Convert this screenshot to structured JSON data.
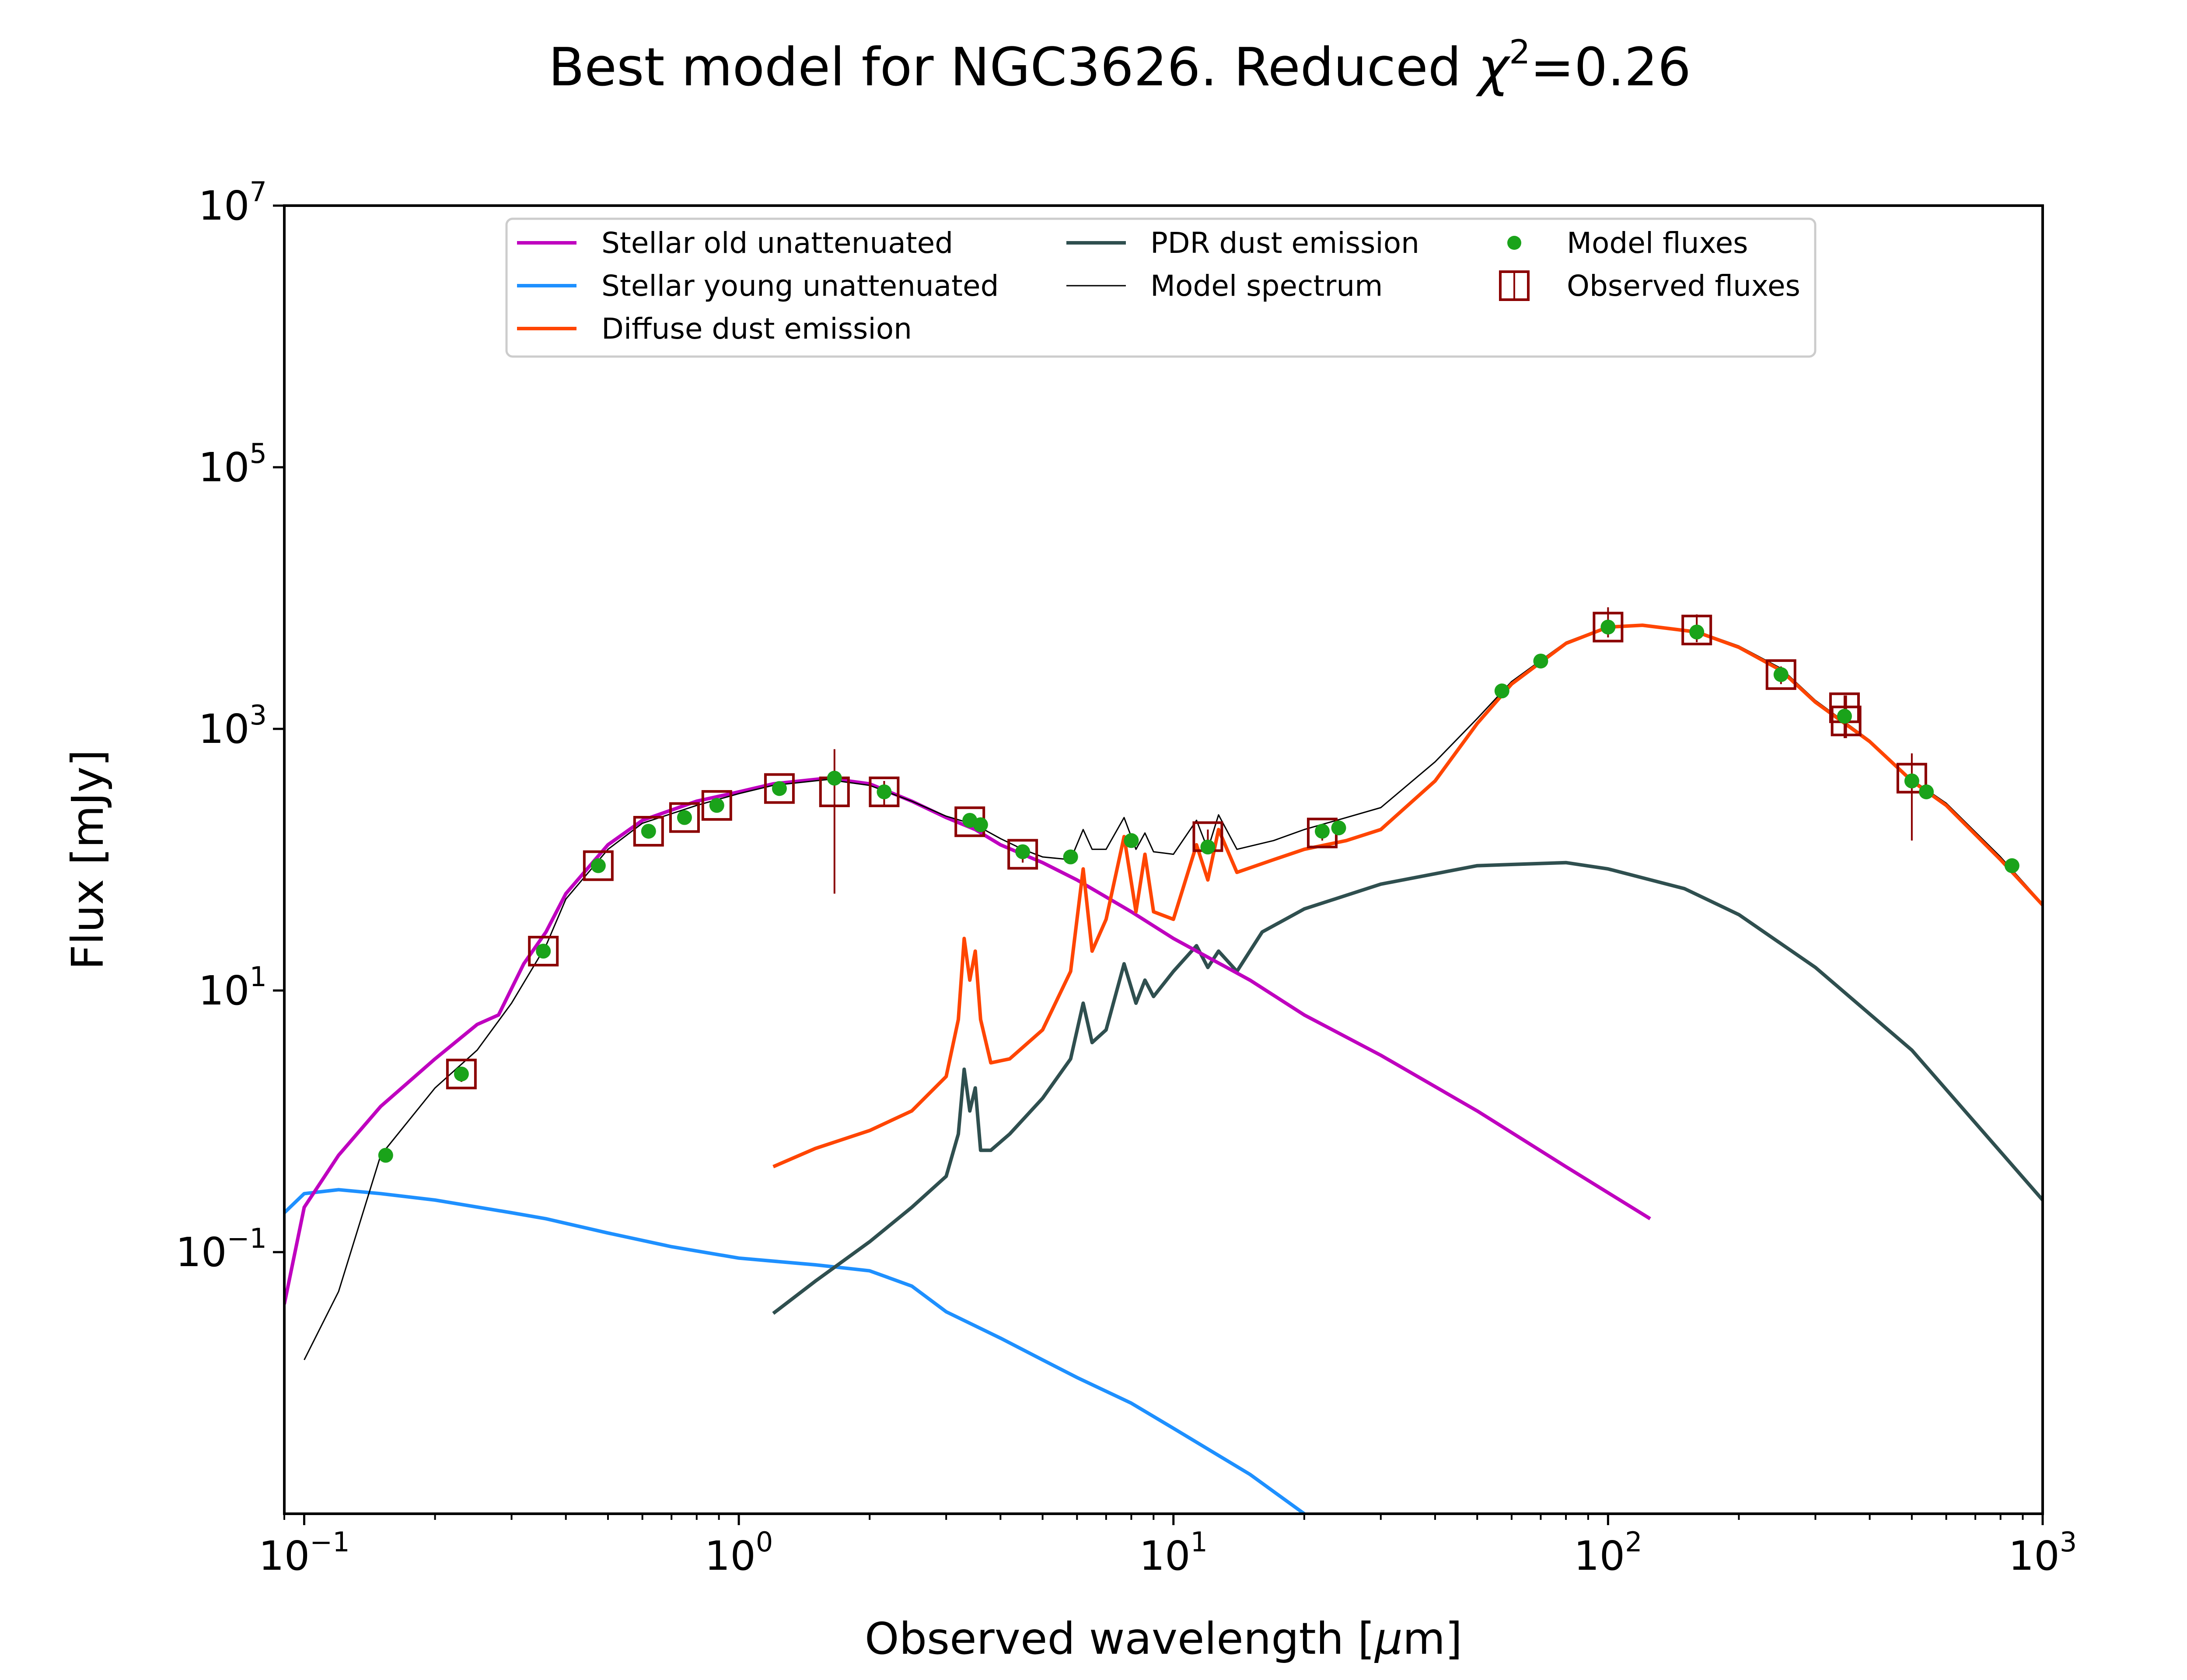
{
  "chart_data": {
    "type": "line",
    "title_prefix": "Best model for NGC3626. Reduced ",
    "title_symbol": "χ",
    "title_sup": "2",
    "title_suffix": "=0.26",
    "xlabel_prefix": "Observed wavelength [",
    "xlabel_mu": "μ",
    "xlabel_suffix": "m]",
    "ylabel": "Flux [mJy]",
    "x_scale": "log",
    "y_scale": "log",
    "xlim": [
      0.09,
      1000
    ],
    "ylim": [
      0.001,
      10000000
    ],
    "x_ticks": [
      {
        "value": 0.1,
        "base": "10",
        "exp": "−1"
      },
      {
        "value": 1,
        "base": "10",
        "exp": "0"
      },
      {
        "value": 10,
        "base": "10",
        "exp": "1"
      },
      {
        "value": 100,
        "base": "10",
        "exp": "2"
      },
      {
        "value": 1000,
        "base": "10",
        "exp": "3"
      }
    ],
    "y_ticks": [
      {
        "value": 0.1,
        "base": "10",
        "exp": "−1"
      },
      {
        "value": 10,
        "base": "10",
        "exp": "1"
      },
      {
        "value": 1000,
        "base": "10",
        "exp": "3"
      },
      {
        "value": 100000,
        "base": "10",
        "exp": "5"
      },
      {
        "value": 10000000,
        "base": "10",
        "exp": "7"
      }
    ],
    "legend_position": "upper-center",
    "series": [
      {
        "name": "Stellar old unattenuated",
        "color": "#bf00bf",
        "x": [
          0.09,
          0.1,
          0.12,
          0.15,
          0.2,
          0.25,
          0.28,
          0.32,
          0.36,
          0.4,
          0.5,
          0.6,
          0.8,
          1.0,
          1.2,
          1.6,
          2.0,
          2.5,
          3.0,
          3.5,
          4.0,
          4.5,
          5.0,
          6.0,
          8.0,
          10,
          15,
          20,
          30,
          50,
          80,
          125
        ],
        "y": [
          0.04,
          0.22,
          0.55,
          1.3,
          3.0,
          5.5,
          6.5,
          16,
          28,
          55,
          130,
          200,
          280,
          330,
          380,
          420,
          380,
          280,
          210,
          170,
          130,
          110,
          95,
          70,
          40,
          25,
          12,
          6.5,
          3.2,
          1.2,
          0.45,
          0.18
        ]
      },
      {
        "name": "Stellar young unattenuated",
        "color": "#1e90ff",
        "x": [
          0.09,
          0.1,
          0.12,
          0.15,
          0.2,
          0.3,
          0.36,
          0.5,
          0.7,
          1.0,
          1.5,
          2.0,
          2.5,
          3.0,
          4.0,
          5.0,
          6.0,
          8.0,
          10,
          15,
          20
        ],
        "y": [
          0.2,
          0.28,
          0.3,
          0.28,
          0.25,
          0.2,
          0.18,
          0.14,
          0.11,
          0.09,
          0.08,
          0.072,
          0.055,
          0.035,
          0.022,
          0.015,
          0.011,
          0.007,
          0.0045,
          0.002,
          0.001
        ]
      },
      {
        "name": "Diffuse dust emission",
        "color": "#ff4500",
        "x": [
          1.2,
          1.5,
          2.0,
          2.5,
          3.0,
          3.2,
          3.3,
          3.4,
          3.5,
          3.6,
          3.8,
          4.2,
          5.0,
          5.8,
          6.2,
          6.5,
          7.0,
          7.7,
          8.2,
          8.6,
          9.0,
          10,
          11.3,
          12.0,
          12.7,
          14,
          17,
          20,
          25,
          30,
          40,
          50,
          60,
          80,
          100,
          120,
          160,
          200,
          250,
          300,
          400,
          500,
          600,
          800,
          1000
        ],
        "y": [
          0.45,
          0.62,
          0.85,
          1.2,
          2.2,
          6.0,
          25,
          12,
          20,
          6.0,
          2.8,
          3.0,
          5.0,
          14,
          85,
          20,
          35,
          150,
          40,
          110,
          40,
          35,
          130,
          70,
          170,
          80,
          100,
          120,
          140,
          170,
          400,
          1100,
          2200,
          4500,
          6000,
          6200,
          5500,
          4200,
          2800,
          1600,
          800,
          400,
          260,
          100,
          45
        ]
      },
      {
        "name": "PDR dust emission",
        "color": "#2f4f4f",
        "x": [
          1.2,
          1.5,
          2.0,
          2.5,
          3.0,
          3.2,
          3.3,
          3.4,
          3.5,
          3.6,
          3.8,
          4.2,
          5.0,
          5.8,
          6.2,
          6.5,
          7.0,
          7.7,
          8.2,
          8.6,
          9.0,
          10,
          11.3,
          12.0,
          12.7,
          14,
          16,
          20,
          30,
          50,
          80,
          100,
          150,
          200,
          300,
          500,
          1000
        ],
        "y": [
          0.034,
          0.06,
          0.12,
          0.22,
          0.38,
          0.8,
          2.5,
          1.2,
          1.8,
          0.6,
          0.6,
          0.8,
          1.5,
          3.0,
          8.0,
          4.0,
          5.0,
          16,
          8.0,
          12,
          9.0,
          14,
          22,
          15,
          20,
          14,
          28,
          42,
          65,
          90,
          95,
          85,
          60,
          38,
          15,
          3.5,
          0.25
        ]
      },
      {
        "name": "Model spectrum",
        "color": "#000000",
        "x": [
          0.1,
          0.12,
          0.15,
          0.2,
          0.25,
          0.3,
          0.36,
          0.4,
          0.5,
          0.6,
          0.8,
          1.0,
          1.2,
          1.6,
          2.0,
          2.5,
          3.0,
          3.5,
          4.0,
          4.5,
          5.0,
          5.8,
          6.2,
          6.5,
          7.0,
          7.7,
          8.2,
          8.6,
          9.0,
          10,
          11.3,
          12.0,
          12.7,
          14,
          17,
          20,
          25,
          30,
          40,
          50,
          60,
          80,
          100,
          120,
          160,
          200,
          250,
          300,
          400,
          500,
          600,
          800,
          1000
        ],
        "y": [
          0.015,
          0.05,
          0.55,
          1.8,
          3.5,
          8.0,
          22,
          50,
          120,
          190,
          260,
          320,
          370,
          410,
          370,
          280,
          215,
          185,
          145,
          120,
          105,
          100,
          170,
          120,
          120,
          210,
          120,
          160,
          115,
          110,
          200,
          120,
          220,
          120,
          140,
          170,
          210,
          250,
          560,
          1200,
          2300,
          4600,
          6100,
          6300,
          5600,
          4300,
          2900,
          1650,
          820,
          410,
          270,
          105,
          46
        ]
      }
    ],
    "model_fluxes": {
      "name": "Model fluxes",
      "color": "#1aa31a",
      "x": [
        0.154,
        0.23,
        0.355,
        0.475,
        0.62,
        0.75,
        0.89,
        1.24,
        1.66,
        2.16,
        3.4,
        3.6,
        4.5,
        5.8,
        8.0,
        12,
        22,
        24,
        57,
        70,
        100,
        160,
        250,
        350,
        500,
        540,
        850
      ],
      "y": [
        0.55,
        2.3,
        20,
        90,
        165,
        210,
        260,
        350,
        420,
        330,
        200,
        185,
        115,
        105,
        140,
        125,
        165,
        175,
        1950,
        3300,
        6000,
        5500,
        2600,
        1250,
        400,
        330,
        90
      ]
    },
    "observed_fluxes": {
      "name": "Observed fluxes",
      "color": "#8b0000",
      "x": [
        0.23,
        0.355,
        0.475,
        0.62,
        0.75,
        0.89,
        1.24,
        1.66,
        2.16,
        3.4,
        4.5,
        12,
        22,
        100,
        160,
        250,
        350,
        353,
        500
      ],
      "y": [
        2.3,
        20,
        90,
        165,
        210,
        260,
        350,
        330,
        330,
        195,
        110,
        150,
        160,
        6000,
        5700,
        2600,
        1450,
        1150,
        420
      ],
      "err_low": [
        2.0,
        18,
        82,
        150,
        190,
        235,
        320,
        55,
        260,
        185,
        95,
        130,
        140,
        5000,
        4600,
        2200,
        850,
        850,
        140
      ],
      "err_high": [
        2.6,
        22,
        98,
        180,
        230,
        285,
        380,
        700,
        400,
        205,
        125,
        170,
        180,
        8500,
        7500,
        3000,
        1800,
        1800,
        650
      ]
    }
  }
}
